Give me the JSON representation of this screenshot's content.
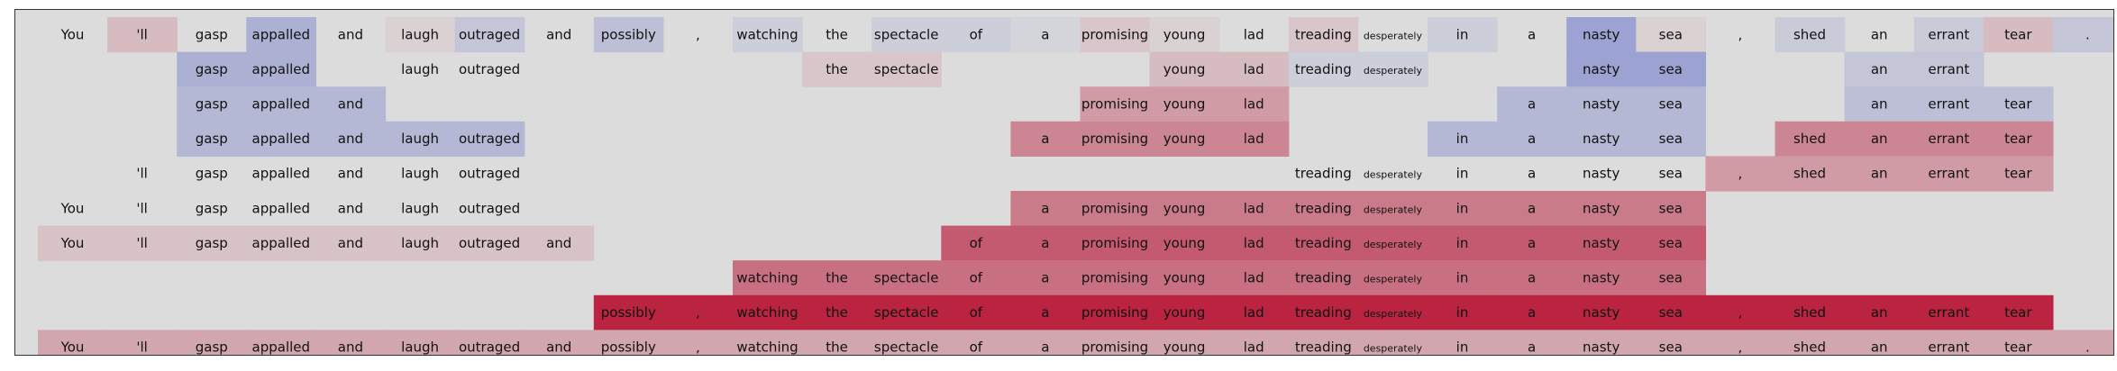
{
  "chart_data": {
    "type": "heatmap",
    "title": "",
    "xlabel": "",
    "ylabel": "",
    "tokens": [
      "You",
      "'ll",
      "gasp",
      "appalled",
      "and",
      "laugh",
      "outraged",
      "and",
      "possibly",
      ",",
      "watching",
      "the",
      "spectacle",
      "of",
      "a",
      "promising",
      "young",
      "lad",
      "treading",
      "desperately",
      "in",
      "a",
      "nasty",
      "sea",
      ",",
      "shed",
      "an",
      "errant",
      "tear",
      "."
    ],
    "rows": [
      {
        "shown": [
          1,
          1,
          1,
          1,
          1,
          1,
          1,
          1,
          1,
          1,
          1,
          1,
          1,
          1,
          1,
          1,
          1,
          1,
          1,
          1,
          1,
          1,
          1,
          1,
          1,
          1,
          1,
          1,
          1,
          1
        ],
        "values": [
          0.0,
          0.15,
          0.0,
          -0.3,
          0.0,
          0.05,
          -0.15,
          0.0,
          -0.2,
          0.0,
          -0.1,
          0.0,
          -0.1,
          -0.1,
          -0.05,
          0.1,
          0.05,
          0.0,
          0.1,
          0.0,
          -0.1,
          0.0,
          -0.4,
          0.05,
          0.0,
          -0.12,
          0.0,
          -0.12,
          0.15,
          -0.15
        ]
      },
      {
        "shown": [
          0,
          0,
          1,
          1,
          0,
          1,
          1,
          0,
          0,
          0,
          0,
          1,
          1,
          0,
          0,
          0,
          1,
          1,
          1,
          1,
          0,
          0,
          1,
          1,
          0,
          0,
          1,
          1,
          0,
          0
        ],
        "values": [
          0.0,
          0.0,
          -0.3,
          -0.3,
          0.0,
          0.0,
          0.0,
          0.0,
          0.0,
          0.0,
          0.0,
          0.1,
          0.1,
          0.0,
          0.0,
          0.0,
          0.15,
          0.15,
          -0.1,
          -0.1,
          0.0,
          0.0,
          -0.4,
          -0.4,
          0.0,
          0.0,
          -0.15,
          -0.15,
          0.0,
          0.0
        ]
      },
      {
        "shown": [
          0,
          0,
          1,
          1,
          1,
          0,
          0,
          0,
          0,
          0,
          0,
          0,
          0,
          0,
          0,
          1,
          1,
          1,
          0,
          0,
          0,
          1,
          1,
          1,
          0,
          0,
          1,
          1,
          1,
          0
        ],
        "values": [
          0.0,
          0.0,
          -0.25,
          -0.25,
          -0.25,
          0.0,
          0.0,
          0.0,
          0.0,
          0.0,
          0.0,
          0.0,
          0.0,
          0.0,
          0.0,
          0.3,
          0.3,
          0.3,
          0.0,
          0.0,
          0.0,
          -0.25,
          -0.25,
          -0.25,
          0.0,
          0.0,
          -0.2,
          -0.2,
          -0.2,
          0.0
        ]
      },
      {
        "shown": [
          0,
          0,
          1,
          1,
          1,
          1,
          1,
          0,
          0,
          0,
          0,
          0,
          0,
          0,
          1,
          1,
          1,
          1,
          0,
          0,
          1,
          1,
          1,
          1,
          0,
          1,
          1,
          1,
          1,
          0
        ],
        "values": [
          0.0,
          0.0,
          -0.25,
          -0.25,
          -0.25,
          -0.25,
          -0.25,
          0.0,
          0.0,
          0.0,
          0.0,
          0.0,
          0.0,
          0.0,
          0.4,
          0.4,
          0.4,
          0.4,
          0.0,
          0.0,
          -0.25,
          -0.25,
          -0.25,
          -0.25,
          0.0,
          0.4,
          0.4,
          0.4,
          0.4,
          0.0
        ]
      },
      {
        "shown": [
          0,
          1,
          1,
          1,
          1,
          1,
          1,
          0,
          0,
          0,
          0,
          0,
          0,
          0,
          0,
          0,
          0,
          0,
          1,
          1,
          1,
          1,
          1,
          1,
          1,
          1,
          1,
          1,
          1,
          0
        ],
        "values": [
          0.0,
          0.0,
          0.0,
          0.0,
          0.0,
          0.0,
          0.0,
          0.0,
          0.0,
          0.0,
          0.0,
          0.0,
          0.0,
          0.0,
          0.0,
          0.0,
          0.0,
          0.0,
          0.0,
          0.0,
          0.0,
          0.0,
          0.0,
          0.0,
          0.3,
          0.3,
          0.3,
          0.3,
          0.3,
          0.0
        ]
      },
      {
        "shown": [
          1,
          1,
          1,
          1,
          1,
          1,
          1,
          0,
          0,
          0,
          0,
          0,
          0,
          0,
          1,
          1,
          1,
          1,
          1,
          1,
          1,
          1,
          1,
          1,
          0,
          0,
          0,
          0,
          0,
          0
        ],
        "values": [
          0.0,
          0.0,
          0.0,
          0.0,
          0.0,
          0.0,
          0.0,
          0.0,
          0.0,
          0.0,
          0.0,
          0.0,
          0.0,
          0.0,
          0.45,
          0.45,
          0.45,
          0.45,
          0.45,
          0.45,
          0.45,
          0.45,
          0.45,
          0.45,
          0.0,
          0.0,
          0.0,
          0.0,
          0.0,
          0.0
        ]
      },
      {
        "shown": [
          1,
          1,
          1,
          1,
          1,
          1,
          1,
          1,
          0,
          0,
          0,
          0,
          0,
          1,
          1,
          1,
          1,
          1,
          1,
          1,
          1,
          1,
          1,
          1,
          0,
          0,
          0,
          0,
          0,
          0
        ],
        "values": [
          0.12,
          0.12,
          0.12,
          0.12,
          0.12,
          0.12,
          0.12,
          0.12,
          0.0,
          0.0,
          0.0,
          0.0,
          0.0,
          0.6,
          0.6,
          0.6,
          0.6,
          0.6,
          0.6,
          0.6,
          0.6,
          0.6,
          0.6,
          0.6,
          0.0,
          0.0,
          0.0,
          0.0,
          0.0,
          0.0
        ]
      },
      {
        "shown": [
          0,
          0,
          0,
          0,
          0,
          0,
          0,
          0,
          0,
          0,
          1,
          1,
          1,
          1,
          1,
          1,
          1,
          1,
          1,
          1,
          1,
          1,
          1,
          1,
          0,
          0,
          0,
          0,
          0,
          0
        ],
        "values": [
          0.0,
          0.0,
          0.0,
          0.0,
          0.0,
          0.0,
          0.0,
          0.0,
          0.0,
          0.0,
          0.5,
          0.5,
          0.5,
          0.5,
          0.5,
          0.5,
          0.5,
          0.5,
          0.5,
          0.5,
          0.5,
          0.5,
          0.5,
          0.5,
          0.0,
          0.0,
          0.0,
          0.0,
          0.0,
          0.0
        ]
      },
      {
        "shown": [
          0,
          0,
          0,
          0,
          0,
          0,
          0,
          0,
          1,
          1,
          1,
          1,
          1,
          1,
          1,
          1,
          1,
          1,
          1,
          1,
          1,
          1,
          1,
          1,
          1,
          1,
          1,
          1,
          1,
          0
        ],
        "values": [
          0.0,
          0.0,
          0.0,
          0.0,
          0.0,
          0.0,
          0.0,
          0.0,
          0.85,
          0.85,
          0.85,
          0.85,
          0.85,
          0.85,
          0.85,
          0.85,
          0.85,
          0.85,
          0.85,
          0.85,
          0.85,
          0.85,
          0.85,
          0.85,
          0.85,
          0.85,
          0.85,
          0.85,
          0.85,
          0.0
        ]
      },
      {
        "shown": [
          1,
          1,
          1,
          1,
          1,
          1,
          1,
          1,
          1,
          1,
          1,
          1,
          1,
          1,
          1,
          1,
          1,
          1,
          1,
          1,
          1,
          1,
          1,
          1,
          1,
          1,
          1,
          1,
          1,
          1
        ],
        "values": [
          0.25,
          0.25,
          0.25,
          0.25,
          0.25,
          0.25,
          0.25,
          0.25,
          0.25,
          0.25,
          0.25,
          0.25,
          0.25,
          0.25,
          0.25,
          0.25,
          0.25,
          0.25,
          0.25,
          0.25,
          0.25,
          0.25,
          0.25,
          0.25,
          0.25,
          0.25,
          0.25,
          0.25,
          0.25,
          0.25
        ]
      }
    ],
    "colormap": "coolwarm",
    "vmin": -1,
    "vmax": 1,
    "grid": false,
    "legend": "none"
  },
  "colors": {
    "neutral": "#dcdcdc",
    "cool": "#3b4cc0",
    "warm": "#b40426",
    "border": "#333333",
    "text": "#111111"
  }
}
